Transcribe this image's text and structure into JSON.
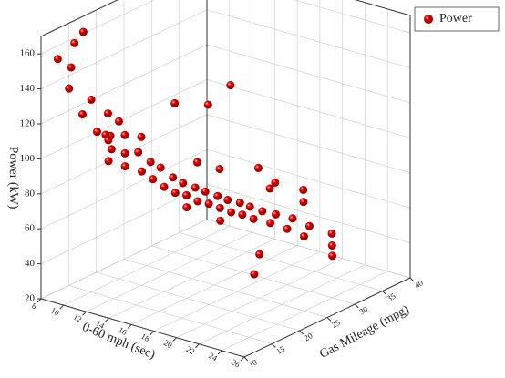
{
  "chart_data": {
    "type": "scatter3d",
    "x_label": "0-60 mph (sec)",
    "y_label": "Gas Mileage (mpg)",
    "z_label": "Power (kW)",
    "xlim": [
      8,
      26
    ],
    "xticks": [
      8,
      10,
      12,
      14,
      16,
      18,
      20,
      22,
      24,
      26
    ],
    "ylim": [
      10,
      40
    ],
    "yticks": [
      10,
      15,
      20,
      25,
      30,
      35,
      40
    ],
    "zlim": [
      20,
      170
    ],
    "zticks": [
      20,
      40,
      60,
      80,
      100,
      120,
      140,
      160
    ],
    "grid": true,
    "legend": "top-right",
    "series": [
      {
        "name": "Power",
        "color": "#e00000",
        "x": [
          8.5,
          9,
          9.2,
          8.8,
          9.5,
          10,
          10.2,
          10.5,
          11,
          11.2,
          11.5,
          11.8,
          12,
          12.2,
          12.5,
          12.8,
          13,
          13.2,
          13.5,
          13.8,
          14,
          14.2,
          14.5,
          14.8,
          15,
          15.2,
          15.5,
          15.8,
          16,
          16.2,
          16.5,
          16.8,
          17,
          17.2,
          17.5,
          17.8,
          18,
          18.5,
          19,
          19.5,
          20,
          20.5,
          21,
          22,
          23,
          24,
          13,
          14,
          12,
          11,
          15,
          16,
          18,
          10,
          9.8,
          14,
          15,
          17,
          19,
          21,
          20,
          13,
          12,
          16,
          18
        ],
        "y": [
          12,
          14,
          13,
          16,
          12,
          15,
          13,
          17,
          14,
          16,
          18,
          15,
          17,
          19,
          16,
          20,
          18,
          21,
          19,
          22,
          20,
          23,
          21,
          24,
          22,
          25,
          23,
          26,
          24,
          27,
          25,
          28,
          26,
          29,
          27,
          30,
          28,
          31,
          29,
          32,
          30,
          33,
          31,
          34,
          32,
          30,
          30,
          32,
          26,
          22,
          35,
          36,
          37,
          20,
          18,
          26,
          28,
          33,
          35,
          22,
          25,
          12,
          14,
          20,
          22
        ],
        "z": [
          155,
          162,
          150,
          165,
          140,
          130,
          125,
          120,
          115,
          110,
          108,
          105,
          100,
          98,
          95,
          92,
          90,
          88,
          85,
          82,
          80,
          78,
          76,
          75,
          74,
          72,
          70,
          69,
          68,
          66,
          65,
          64,
          62,
          61,
          60,
          58,
          57,
          56,
          55,
          54,
          52,
          50,
          48,
          47,
          45,
          44,
          110,
          120,
          115,
          100,
          70,
          62,
          60,
          110,
          105,
          85,
          80,
          65,
          58,
          40,
          45,
          105,
          112,
          72,
          65
        ]
      }
    ]
  }
}
